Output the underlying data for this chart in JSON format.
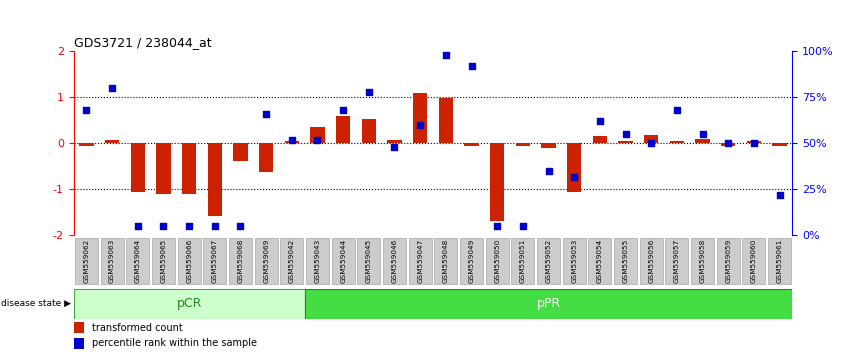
{
  "title": "GDS3721 / 238044_at",
  "samples": [
    "GSM559062",
    "GSM559063",
    "GSM559064",
    "GSM559065",
    "GSM559066",
    "GSM559067",
    "GSM559068",
    "GSM559069",
    "GSM559042",
    "GSM559043",
    "GSM559044",
    "GSM559045",
    "GSM559046",
    "GSM559047",
    "GSM559048",
    "GSM559049",
    "GSM559050",
    "GSM559051",
    "GSM559052",
    "GSM559053",
    "GSM559054",
    "GSM559055",
    "GSM559056",
    "GSM559057",
    "GSM559058",
    "GSM559059",
    "GSM559060",
    "GSM559061"
  ],
  "bar_values": [
    -0.05,
    0.08,
    -1.05,
    -1.1,
    -1.1,
    -1.58,
    -0.38,
    -0.62,
    0.05,
    0.35,
    0.6,
    0.52,
    0.08,
    1.1,
    0.98,
    -0.05,
    -1.68,
    -0.05,
    -0.1,
    -1.05,
    0.15,
    0.05,
    0.18,
    0.05,
    0.1,
    -0.05,
    0.05,
    -0.05
  ],
  "dot_pct": [
    68,
    80,
    5,
    5,
    5,
    5,
    5,
    66,
    52,
    52,
    68,
    78,
    48,
    60,
    98,
    92,
    5,
    5,
    35,
    32,
    62,
    55,
    50,
    68,
    55,
    50,
    50,
    22
  ],
  "pCR_count": 9,
  "pPR_count": 19,
  "ylim": [
    -2,
    2
  ],
  "yticks_left": [
    -2,
    -1,
    0,
    1,
    2
  ],
  "yticks_right_pct": [
    0,
    25,
    50,
    75,
    100
  ],
  "bar_color": "#cc2200",
  "dot_color": "#0000cc",
  "pCR_facecolor": "#ccffcc",
  "pCR_edgecolor": "#44aa44",
  "pPR_facecolor": "#44dd44",
  "pPR_edgecolor": "#228822",
  "legend_bar_label": "transformed count",
  "legend_dot_label": "percentile rank within the sample",
  "disease_state_label": "disease state",
  "pCR_label": "pCR",
  "pPR_label": "pPR",
  "bg_tick_color": "#cccccc",
  "bg_tick_edge": "#999999"
}
